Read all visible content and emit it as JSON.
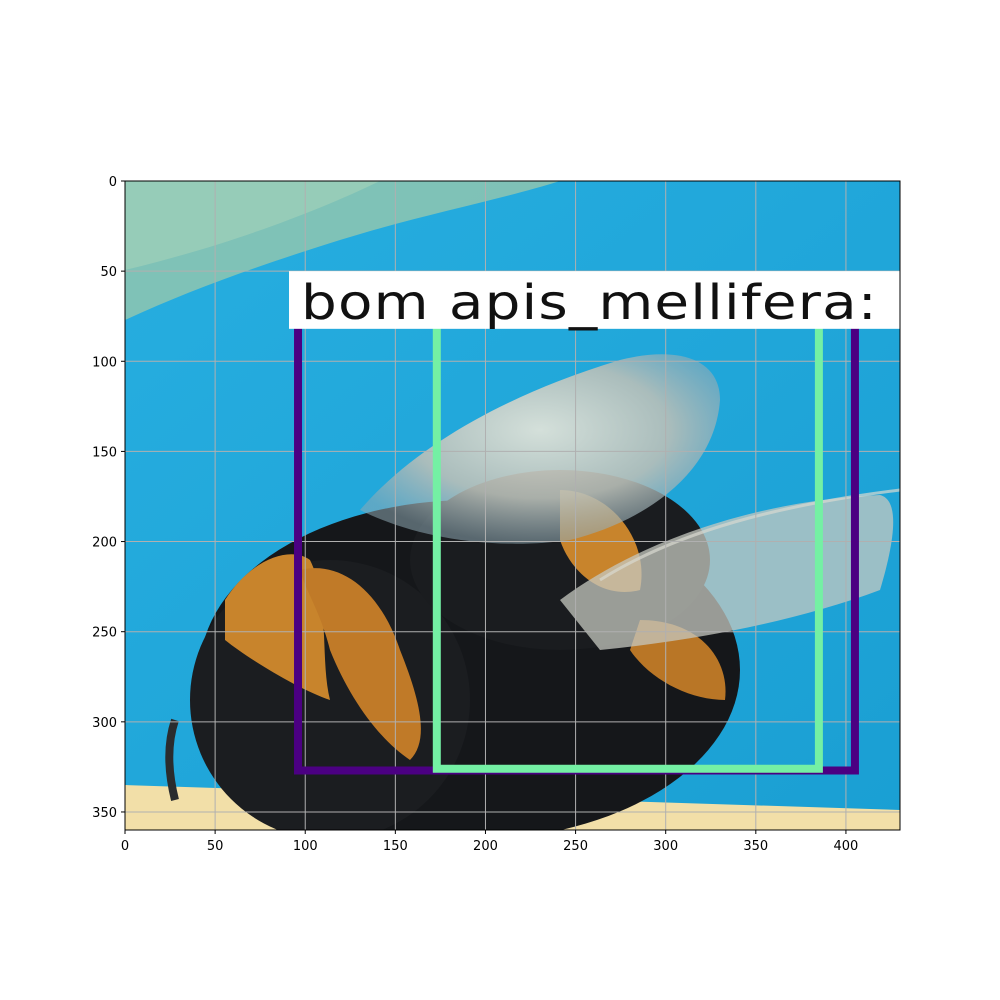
{
  "figure": {
    "x_axis": {
      "range": [
        0,
        430
      ],
      "ticks": [
        0,
        50,
        100,
        150,
        200,
        250,
        300,
        350,
        400
      ],
      "tick_labels": [
        "0",
        "50",
        "100",
        "150",
        "200",
        "250",
        "300",
        "350",
        "400"
      ]
    },
    "y_axis": {
      "range": [
        0,
        360
      ],
      "inverted": true,
      "ticks": [
        0,
        50,
        100,
        150,
        200,
        250,
        300,
        350
      ],
      "tick_labels": [
        "0",
        "50",
        "100",
        "150",
        "200",
        "250",
        "300",
        "350"
      ]
    },
    "grid": true,
    "grid_color": "#b0b0b0"
  },
  "image": {
    "subject": "bumblebee on blue background",
    "colors": {
      "background_blue": "#1ea6d8",
      "top_left_green": "#8fc6b0",
      "bee_black": "#15171a",
      "bee_orange": "#c8842c",
      "wing": "#cfd2c8",
      "floor_yellow": "#f2dfa8"
    }
  },
  "detections": [
    {
      "label": "bom",
      "color": "#4b0082",
      "box_data": {
        "x_min": 96,
        "x_max": 405,
        "y_top": 55,
        "y_bottom": 327
      }
    },
    {
      "label": "apis_mellifera:",
      "color": "#74f0a4",
      "box_data": {
        "x_min": 173,
        "x_max": 385,
        "y_top": 55,
        "y_bottom": 326
      }
    }
  ],
  "label_banner": {
    "text": "bom apis_mellifera:",
    "background": "#ffffff",
    "text_color": "#111111",
    "data_range": {
      "x_min": 91,
      "x_max": 430,
      "y_top": 50,
      "y_bottom": 82
    }
  }
}
